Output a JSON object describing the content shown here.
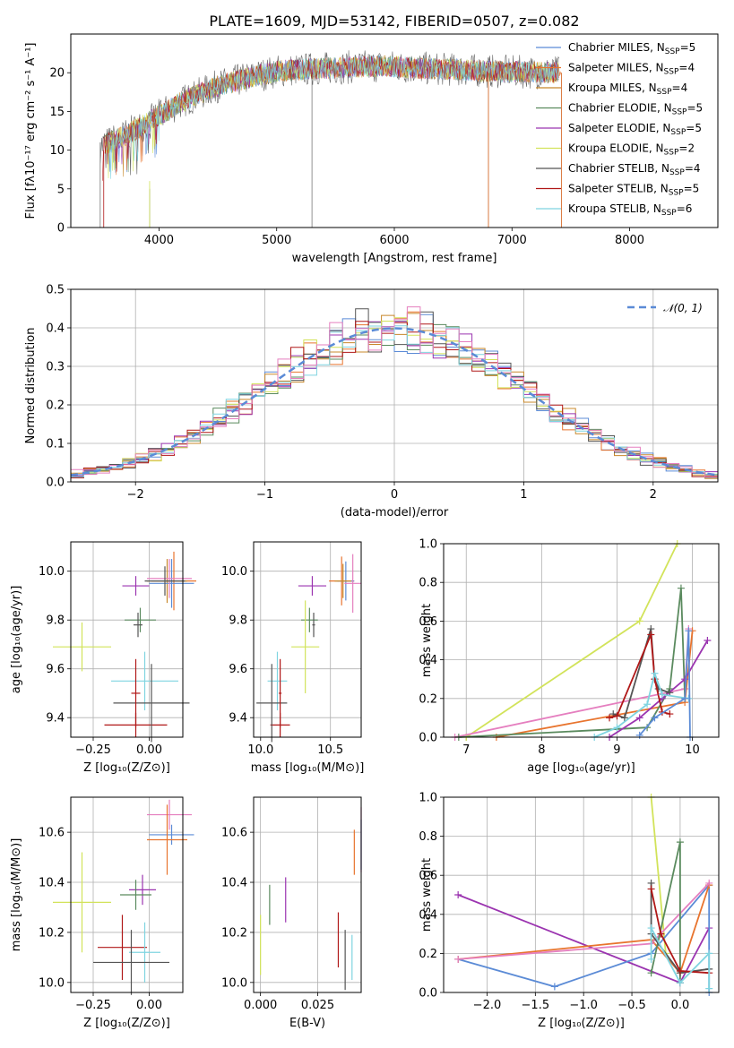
{
  "figure": {
    "title": "PLATE=1609, MJD=53142, FIBERID=0507, z=0.082"
  },
  "colors": {
    "chabrier_miles": "#5b8bd6",
    "salpeter_miles": "#e8742e",
    "kroupa_miles": "#c8882b",
    "chabrier_elodie": "#5a8a5e",
    "salpeter_elodie": "#9b34b0",
    "kroupa_elodie": "#d2e35a",
    "chabrier_stelib": "#555555",
    "salpeter_stelib": "#b01818",
    "kroupa_stelib": "#7fd4e0",
    "pink": "#e57fbf",
    "normal_curve": "#5b8bd6"
  },
  "chart_data": [
    {
      "id": "spectrum",
      "type": "line",
      "title": "PLATE=1609, MJD=53142, FIBERID=0507, z=0.082",
      "xlabel": "wavelength [Angstrom, rest frame]",
      "ylabel": "Flux [fλ10⁻¹⁷ erg cm⁻² s⁻¹ A⁻¹]",
      "xlim": [
        3250,
        8750
      ],
      "ylim": [
        0,
        25
      ],
      "xticks": [
        "4000",
        "5000",
        "6000",
        "7000",
        "8000"
      ],
      "yticks": [
        "0",
        "5",
        "10",
        "15",
        "20"
      ],
      "legend_position": "right",
      "legend": [
        {
          "label": "Chabrier MILES, N",
          "sub": "SSP",
          "post": "=5",
          "color": "chabrier_miles"
        },
        {
          "label": "Salpeter MILES, N",
          "sub": "SSP",
          "post": "=4",
          "color": "salpeter_miles"
        },
        {
          "label": "Kroupa MILES, N",
          "sub": "SSP",
          "post": "=4",
          "color": "kroupa_miles"
        },
        {
          "label": "Chabrier ELODIE, N",
          "sub": "SSP",
          "post": "=5",
          "color": "chabrier_elodie"
        },
        {
          "label": "Salpeter ELODIE, N",
          "sub": "SSP",
          "post": "=5",
          "color": "salpeter_elodie"
        },
        {
          "label": "Kroupa ELODIE, N",
          "sub": "SSP",
          "post": "=2",
          "color": "kroupa_elodie"
        },
        {
          "label": "Chabrier STELIB, N",
          "sub": "SSP",
          "post": "=4",
          "color": "chabrier_stelib"
        },
        {
          "label": "Salpeter STELIB, N",
          "sub": "SSP",
          "post": "=5",
          "color": "salpeter_stelib"
        },
        {
          "label": "Kroupa STELIB, N",
          "sub": "SSP",
          "post": "=6",
          "color": "kroupa_stelib"
        }
      ],
      "continuum": {
        "x": [
          3500,
          3700,
          3900,
          4000,
          4200,
          4500,
          4800,
          5000,
          5300,
          5600,
          5900,
          6200,
          6500,
          6800,
          7100,
          7400
        ],
        "y": [
          10.5,
          11.8,
          13.5,
          14.5,
          16.3,
          18.3,
          19.5,
          20.2,
          20.5,
          20.7,
          20.9,
          20.6,
          20.4,
          20.2,
          20.1,
          20.0
        ]
      },
      "data_range": [
        3500,
        7400
      ],
      "model_ranges": {
        "salpeter_stelib": [
          3520,
          7400
        ],
        "salpeter_miles": [
          3540,
          7420
        ],
        "kroupa_stelib": [
          3560,
          7400
        ],
        "chabrier_stelib": [
          3500,
          7400
        ]
      },
      "spikes": [
        {
          "x": 3500,
          "y": 11.0
        },
        {
          "x": 3920,
          "y": 5.0
        },
        {
          "x": 5300,
          "y": 19.5
        },
        {
          "x": 6800,
          "y": 20.0
        },
        {
          "x": 7420,
          "y": 20.0
        }
      ]
    },
    {
      "id": "residual-histogram",
      "type": "line",
      "xlabel": "(data-model)/error",
      "ylabel": "Normed distribution",
      "xlim": [
        -2.5,
        2.5
      ],
      "ylim": [
        0,
        0.5
      ],
      "xticks": [
        "−2",
        "−1",
        "0",
        "1",
        "2"
      ],
      "yticks": [
        "0.0",
        "0.1",
        "0.2",
        "0.3",
        "0.4",
        "0.5"
      ],
      "legend_position": "top-right",
      "legend": [
        {
          "label": "𝒩(0, 1)",
          "color": "normal_curve"
        }
      ],
      "bin_width": 0.1,
      "bin_start": -2.5,
      "series_colors": [
        "chabrier_miles",
        "salpeter_miles",
        "kroupa_miles",
        "chabrier_elodie",
        "salpeter_elodie",
        "kroupa_elodie",
        "chabrier_stelib",
        "salpeter_stelib",
        "kroupa_stelib",
        "pink"
      ]
    },
    {
      "id": "age-vs-z",
      "type": "scatter",
      "xlabel": "Z [log₁₀(Z/Z⊙)]",
      "ylabel": "age  [log₁₀(age/yr)]",
      "xlim": [
        -0.35,
        0.15
      ],
      "ylim": [
        9.32,
        10.12
      ],
      "xticks": [
        "−0.25",
        "0.00"
      ],
      "ytick_values": [
        9.4,
        9.6,
        9.8,
        10.0
      ],
      "yticks": [
        "9.4",
        "9.6",
        "9.8",
        "10.0"
      ],
      "xtick_values": [
        -0.25,
        0.0
      ],
      "points": [
        {
          "x": 0.11,
          "y": 9.96,
          "dx": 0.1,
          "dy": 0.12,
          "color": "salpeter_miles"
        },
        {
          "x": 0.08,
          "y": 9.96,
          "dx": 0.09,
          "dy": 0.09,
          "color": "kroupa_miles"
        },
        {
          "x": 0.1,
          "y": 9.95,
          "dx": 0.1,
          "dy": 0.1,
          "color": "chabrier_miles"
        },
        {
          "x": 0.09,
          "y": 9.97,
          "dx": 0.1,
          "dy": 0.08,
          "color": "pink"
        },
        {
          "x": 0.07,
          "y": 9.96,
          "dx": 0.09,
          "dy": 0.06,
          "color": "chabrier_stelib"
        },
        {
          "x": -0.06,
          "y": 9.94,
          "dx": 0.06,
          "dy": 0.04,
          "color": "salpeter_elodie"
        },
        {
          "x": -0.04,
          "y": 9.8,
          "dx": 0.07,
          "dy": 0.05,
          "color": "chabrier_elodie"
        },
        {
          "x": -0.3,
          "y": 9.69,
          "dx": 0.13,
          "dy": 0.1,
          "color": "kroupa_elodie"
        },
        {
          "x": -0.02,
          "y": 9.55,
          "dx": 0.15,
          "dy": 0.12,
          "color": "kroupa_stelib"
        },
        {
          "x": -0.06,
          "y": 9.37,
          "dx": 0.14,
          "dy": 0.05,
          "color": "salpeter_stelib"
        },
        {
          "x": 0.01,
          "y": 9.46,
          "dx": 0.17,
          "dy": 0.16,
          "color": "chabrier_stelib"
        },
        {
          "x": -0.06,
          "y": 9.5,
          "dx": 0.02,
          "dy": 0.14,
          "color": "salpeter_stelib"
        },
        {
          "x": -0.05,
          "y": 9.78,
          "dx": 0.02,
          "dy": 0.05,
          "color": "chabrier_stelib"
        }
      ]
    },
    {
      "id": "age-vs-mass",
      "type": "scatter",
      "xlabel": "mass [log₁₀(M/M⊙)]",
      "ylabel": "",
      "xlim": [
        9.95,
        10.72
      ],
      "ylim": [
        9.32,
        10.12
      ],
      "xticks": [
        "10.0",
        "10.5"
      ],
      "xtick_values": [
        10.0,
        10.5
      ],
      "yticks": [
        "9.4",
        "9.6",
        "9.8",
        "10.0"
      ],
      "ytick_values": [
        9.4,
        9.6,
        9.8,
        10.0
      ],
      "points": [
        {
          "x": 10.58,
          "y": 9.96,
          "dx": 0.09,
          "dy": 0.1,
          "color": "salpeter_miles"
        },
        {
          "x": 10.61,
          "y": 9.96,
          "dx": 0.06,
          "dy": 0.08,
          "color": "chabrier_miles"
        },
        {
          "x": 10.66,
          "y": 9.95,
          "dx": 0.06,
          "dy": 0.12,
          "color": "pink"
        },
        {
          "x": 10.59,
          "y": 9.96,
          "dx": 0.06,
          "dy": 0.07,
          "color": "kroupa_miles"
        },
        {
          "x": 10.37,
          "y": 9.94,
          "dx": 0.1,
          "dy": 0.04,
          "color": "salpeter_elodie"
        },
        {
          "x": 10.35,
          "y": 9.8,
          "dx": 0.06,
          "dy": 0.05,
          "color": "chabrier_elodie"
        },
        {
          "x": 10.32,
          "y": 9.69,
          "dx": 0.1,
          "dy": 0.19,
          "color": "kroupa_elodie"
        },
        {
          "x": 10.12,
          "y": 9.55,
          "dx": 0.07,
          "dy": 0.12,
          "color": "kroupa_stelib"
        },
        {
          "x": 10.14,
          "y": 9.37,
          "dx": 0.07,
          "dy": 0.05,
          "color": "salpeter_stelib"
        },
        {
          "x": 10.08,
          "y": 9.46,
          "dx": 0.11,
          "dy": 0.16,
          "color": "chabrier_stelib"
        },
        {
          "x": 10.14,
          "y": 9.5,
          "dx": 0.01,
          "dy": 0.14,
          "color": "salpeter_stelib"
        },
        {
          "x": 10.38,
          "y": 9.78,
          "dx": 0.01,
          "dy": 0.05,
          "color": "chabrier_stelib"
        }
      ]
    },
    {
      "id": "massweight-vs-age",
      "type": "line",
      "xlabel": "age  [log₁₀(age/yr)]",
      "ylabel": "mass weight",
      "xlim": [
        6.7,
        10.35
      ],
      "ylim": [
        0,
        1.0
      ],
      "xticks": [
        "7",
        "8",
        "9",
        "10"
      ],
      "xtick_values": [
        7,
        8,
        9,
        10
      ],
      "yticks": [
        "0.0",
        "0.2",
        "0.4",
        "0.6",
        "0.8",
        "1.0"
      ],
      "ytick_values": [
        0,
        0.2,
        0.4,
        0.6,
        0.8,
        1.0
      ],
      "series": [
        {
          "color": "kroupa_elodie",
          "x": [
            7.0,
            9.3,
            9.8
          ],
          "y": [
            0.0,
            0.6,
            1.0
          ]
        },
        {
          "color": "pink",
          "x": [
            6.85,
            9.9,
            9.95
          ],
          "y": [
            0.0,
            0.25,
            0.56
          ]
        },
        {
          "color": "salpeter_miles",
          "x": [
            7.4,
            9.9,
            10.0
          ],
          "y": [
            0.0,
            0.18,
            0.55
          ]
        },
        {
          "color": "chabrier_elodie",
          "x": [
            6.9,
            9.4,
            9.7,
            9.85,
            9.9
          ],
          "y": [
            0.0,
            0.05,
            0.25,
            0.77,
            0.2
          ]
        },
        {
          "color": "salpeter_elodie",
          "x": [
            8.9,
            9.3,
            9.6,
            9.9,
            10.2
          ],
          "y": [
            0.0,
            0.1,
            0.2,
            0.3,
            0.5
          ]
        },
        {
          "color": "chabrier_stelib",
          "x": [
            8.95,
            9.1,
            9.45,
            9.5,
            9.55,
            9.7
          ],
          "y": [
            0.12,
            0.1,
            0.56,
            0.3,
            0.25,
            0.23
          ]
        },
        {
          "color": "salpeter_stelib",
          "x": [
            8.9,
            9.0,
            9.45,
            9.5,
            9.6,
            9.7
          ],
          "y": [
            0.1,
            0.11,
            0.53,
            0.3,
            0.13,
            0.12
          ]
        },
        {
          "color": "kroupa_stelib",
          "x": [
            8.7,
            9.0,
            9.4,
            9.5,
            9.6,
            9.95
          ],
          "y": [
            0.0,
            0.05,
            0.17,
            0.33,
            0.22,
            0.2
          ]
        },
        {
          "color": "chabrier_miles",
          "x": [
            9.3,
            9.5,
            9.9,
            9.95,
            9.97
          ],
          "y": [
            0.01,
            0.1,
            0.2,
            0.55,
            0.0
          ]
        }
      ]
    },
    {
      "id": "mass-vs-z",
      "type": "scatter",
      "xlabel": "Z [log₁₀(Z/Z⊙)]",
      "ylabel": "mass [log₁₀(M/M⊙)]",
      "xlim": [
        -0.35,
        0.15
      ],
      "ylim": [
        9.96,
        10.74
      ],
      "xticks": [
        "−0.25",
        "0.00"
      ],
      "xtick_values": [
        -0.25,
        0.0
      ],
      "yticks": [
        "10.0",
        "10.2",
        "10.4",
        "10.6"
      ],
      "ytick_values": [
        10.0,
        10.2,
        10.4,
        10.6
      ],
      "points": [
        {
          "x": 0.09,
          "y": 10.67,
          "dx": 0.1,
          "dy": 0.06,
          "color": "pink"
        },
        {
          "x": 0.1,
          "y": 10.59,
          "dx": 0.1,
          "dy": 0.04,
          "color": "chabrier_miles"
        },
        {
          "x": 0.08,
          "y": 10.57,
          "dx": 0.09,
          "dy": 0.14,
          "color": "salpeter_miles"
        },
        {
          "x": -0.03,
          "y": 10.37,
          "dx": 0.06,
          "dy": 0.06,
          "color": "salpeter_elodie"
        },
        {
          "x": -0.06,
          "y": 10.35,
          "dx": 0.07,
          "dy": 0.06,
          "color": "chabrier_elodie"
        },
        {
          "x": -0.3,
          "y": 10.32,
          "dx": 0.13,
          "dy": 0.2,
          "color": "kroupa_elodie"
        },
        {
          "x": -0.12,
          "y": 10.14,
          "dx": 0.11,
          "dy": 0.13,
          "color": "salpeter_stelib"
        },
        {
          "x": -0.02,
          "y": 10.12,
          "dx": 0.07,
          "dy": 0.12,
          "color": "kroupa_stelib"
        },
        {
          "x": -0.08,
          "y": 10.08,
          "dx": 0.17,
          "dy": 0.13,
          "color": "chabrier_stelib"
        }
      ]
    },
    {
      "id": "mass-vs-ebv",
      "type": "scatter",
      "xlabel": "E(B-V)",
      "ylabel": "",
      "xlim": [
        -0.003,
        0.044
      ],
      "ylim": [
        9.96,
        10.74
      ],
      "xticks": [
        "0.000",
        "0.025"
      ],
      "xtick_values": [
        0.0,
        0.025
      ],
      "yticks": [
        "10.0",
        "10.2",
        "10.4",
        "10.6"
      ],
      "ytick_values": [
        10.0,
        10.2,
        10.4,
        10.6
      ],
      "points": [
        {
          "x": 0.0,
          "y": 10.15,
          "dx": 0.0,
          "dy": 0.12,
          "color": "kroupa_elodie"
        },
        {
          "x": 0.004,
          "y": 10.31,
          "dx": 0.0,
          "dy": 0.08,
          "color": "chabrier_elodie"
        },
        {
          "x": 0.011,
          "y": 10.33,
          "dx": 0.0,
          "dy": 0.09,
          "color": "salpeter_elodie"
        },
        {
          "x": 0.034,
          "y": 10.17,
          "dx": 0.0,
          "dy": 0.11,
          "color": "salpeter_stelib"
        },
        {
          "x": 0.037,
          "y": 10.09,
          "dx": 0.0,
          "dy": 0.12,
          "color": "chabrier_stelib"
        },
        {
          "x": 0.04,
          "y": 10.1,
          "dx": 0.0,
          "dy": 0.09,
          "color": "kroupa_stelib"
        },
        {
          "x": 0.041,
          "y": 10.52,
          "dx": 0.0,
          "dy": 0.09,
          "color": "salpeter_miles"
        },
        {
          "x": 0.044,
          "y": 10.57,
          "dx": 0.0,
          "dy": 0.13,
          "color": "pink"
        },
        {
          "x": 0.044,
          "y": 10.55,
          "dx": 0.0,
          "dy": 0.1,
          "color": "chabrier_miles"
        }
      ]
    },
    {
      "id": "massweight-vs-z",
      "type": "line",
      "xlabel": "Z [log₁₀(Z/Z⊙)]",
      "ylabel": "mass weight",
      "xlim": [
        -2.45,
        0.4
      ],
      "ylim": [
        0,
        1.0
      ],
      "xticks": [
        "−2.0",
        "−1.5",
        "−1.0",
        "−0.5",
        "0.0"
      ],
      "xtick_values": [
        -2.0,
        -1.5,
        -1.0,
        -0.5,
        0.0
      ],
      "yticks": [
        "0.0",
        "0.2",
        "0.4",
        "0.6",
        "0.8",
        "1.0"
      ],
      "ytick_values": [
        0,
        0.2,
        0.4,
        0.6,
        0.8,
        1.0
      ],
      "series": [
        {
          "color": "kroupa_elodie",
          "x": [
            -0.3,
            -0.15
          ],
          "y": [
            1.0,
            0.2
          ]
        },
        {
          "color": "salpeter_elodie",
          "x": [
            -2.3,
            0.0,
            0.3
          ],
          "y": [
            0.5,
            0.05,
            0.33
          ]
        },
        {
          "color": "chabrier_miles",
          "x": [
            -2.3,
            -1.3,
            -0.3,
            0.3,
            0.3
          ],
          "y": [
            0.17,
            0.03,
            0.2,
            0.55,
            0.0
          ]
        },
        {
          "color": "salpeter_miles",
          "x": [
            -2.3,
            -0.3,
            0.0,
            0.3
          ],
          "y": [
            0.17,
            0.27,
            0.1,
            0.55
          ]
        },
        {
          "color": "pink",
          "x": [
            -2.3,
            -0.3,
            0.3
          ],
          "y": [
            0.17,
            0.25,
            0.56
          ]
        },
        {
          "color": "chabrier_elodie",
          "x": [
            -0.3,
            0.0,
            0.0
          ],
          "y": [
            0.1,
            0.77,
            0.05
          ]
        },
        {
          "color": "chabrier_stelib",
          "x": [
            -0.3,
            -0.3,
            0.0,
            0.3
          ],
          "y": [
            0.56,
            0.3,
            0.1,
            0.12
          ]
        },
        {
          "color": "salpeter_stelib",
          "x": [
            -0.3,
            -0.2,
            0.0,
            0.3
          ],
          "y": [
            0.53,
            0.3,
            0.11,
            0.1
          ]
        },
        {
          "color": "kroupa_stelib",
          "x": [
            -0.3,
            -0.3,
            0.0,
            0.3,
            0.3
          ],
          "y": [
            0.17,
            0.33,
            0.05,
            0.2,
            0.02
          ]
        }
      ]
    }
  ]
}
